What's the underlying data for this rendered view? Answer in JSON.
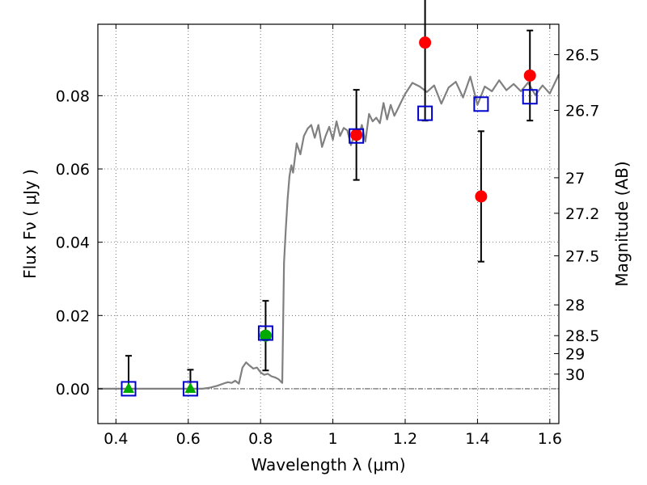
{
  "chart_data": {
    "type": "scatter",
    "xlabel": "Wavelength  λ (μm)",
    "ylabel": "Flux  Fν  ( μJy )",
    "y2label": "Magnitude (AB)",
    "xlim": [
      0.35,
      1.625
    ],
    "ylim": [
      -0.0095,
      0.0995
    ],
    "x_ticks": [
      0.4,
      0.6,
      0.8,
      1.0,
      1.2,
      1.4,
      1.6
    ],
    "x_tick_labels": [
      "0.4",
      "0.6",
      "0.8",
      "1",
      "1.2",
      "1.4",
      "1.6"
    ],
    "y_ticks": [
      0.0,
      0.02,
      0.04,
      0.06,
      0.08
    ],
    "y_tick_labels": [
      "0.00",
      "0.02",
      "0.04",
      "0.06",
      "0.08"
    ],
    "y2_ticks": [
      {
        "label": "26.5",
        "flux": 0.0912
      },
      {
        "label": "26.7",
        "flux": 0.076
      },
      {
        "label": "27",
        "flux": 0.0576
      },
      {
        "label": "27.2",
        "flux": 0.0479
      },
      {
        "label": "27.5",
        "flux": 0.0363
      },
      {
        "label": "28",
        "flux": 0.0229
      },
      {
        "label": "28.5",
        "flux": 0.0145
      },
      {
        "label": "29",
        "flux": 0.0096
      },
      {
        "label": "30",
        "flux": 0.004
      }
    ],
    "grid": true,
    "zero_line": true,
    "series": [
      {
        "name": "model_sed",
        "style": "line",
        "color": "#808080",
        "x": [
          0.35,
          0.64,
          0.66,
          0.68,
          0.7,
          0.71,
          0.72,
          0.73,
          0.74,
          0.75,
          0.76,
          0.77,
          0.78,
          0.79,
          0.8,
          0.81,
          0.82,
          0.83,
          0.84,
          0.85,
          0.86,
          0.865,
          0.87,
          0.875,
          0.88,
          0.885,
          0.89,
          0.9,
          0.91,
          0.92,
          0.93,
          0.94,
          0.95,
          0.96,
          0.97,
          0.98,
          0.99,
          1.0,
          1.01,
          1.02,
          1.03,
          1.04,
          1.05,
          1.06,
          1.07,
          1.08,
          1.09,
          1.1,
          1.11,
          1.12,
          1.13,
          1.14,
          1.15,
          1.16,
          1.17,
          1.18,
          1.19,
          1.2,
          1.22,
          1.24,
          1.26,
          1.28,
          1.3,
          1.32,
          1.34,
          1.36,
          1.38,
          1.4,
          1.42,
          1.44,
          1.46,
          1.48,
          1.5,
          1.52,
          1.54,
          1.56,
          1.58,
          1.6,
          1.625
        ],
        "y": [
          0.0,
          0.0,
          0.0003,
          0.0008,
          0.0015,
          0.0018,
          0.0016,
          0.0022,
          0.0014,
          0.0058,
          0.0072,
          0.0063,
          0.0055,
          0.0058,
          0.0045,
          0.0038,
          0.0041,
          0.0034,
          0.0031,
          0.0026,
          0.0016,
          0.0345,
          0.044,
          0.052,
          0.058,
          0.061,
          0.059,
          0.067,
          0.064,
          0.069,
          0.071,
          0.072,
          0.0685,
          0.072,
          0.066,
          0.069,
          0.0715,
          0.068,
          0.073,
          0.069,
          0.0712,
          0.0705,
          0.0665,
          0.0695,
          0.0685,
          0.072,
          0.0675,
          0.075,
          0.073,
          0.074,
          0.0725,
          0.078,
          0.0735,
          0.0775,
          0.0745,
          0.0765,
          0.0785,
          0.0805,
          0.0835,
          0.0825,
          0.081,
          0.0828,
          0.0778,
          0.0822,
          0.0838,
          0.0795,
          0.0852,
          0.0775,
          0.0825,
          0.0812,
          0.0842,
          0.0815,
          0.0832,
          0.0812,
          0.0836,
          0.0802,
          0.0828,
          0.0806,
          0.0858
        ]
      },
      {
        "name": "model_bandpass_flux",
        "style": "open-square",
        "color": "#0000cc",
        "x": [
          0.435,
          0.606,
          0.814,
          1.065,
          1.255,
          1.41,
          1.545
        ],
        "y": [
          0.0,
          0.0,
          0.0152,
          0.069,
          0.0752,
          0.0777,
          0.0797
        ]
      },
      {
        "name": "detections",
        "style": "filled-circle",
        "color": "#ff0000",
        "x": [
          1.065,
          1.255,
          1.41,
          1.545
        ],
        "y": [
          0.0693,
          0.0945,
          0.0525,
          0.0855
        ],
        "err": [
          0.0123,
          0.0213,
          0.0178,
          0.0123
        ]
      },
      {
        "name": "optical_detection",
        "style": "filled-circle",
        "color": "#00aa00",
        "x": [
          0.814
        ],
        "y": [
          0.0145
        ],
        "err": [
          0.0095
        ]
      },
      {
        "name": "upper_limits",
        "style": "filled-triangle",
        "color": "#00aa00",
        "x": [
          0.435,
          0.606
        ],
        "y": [
          0.0,
          0.0
        ],
        "err_up": [
          0.009,
          0.0052
        ]
      }
    ]
  }
}
